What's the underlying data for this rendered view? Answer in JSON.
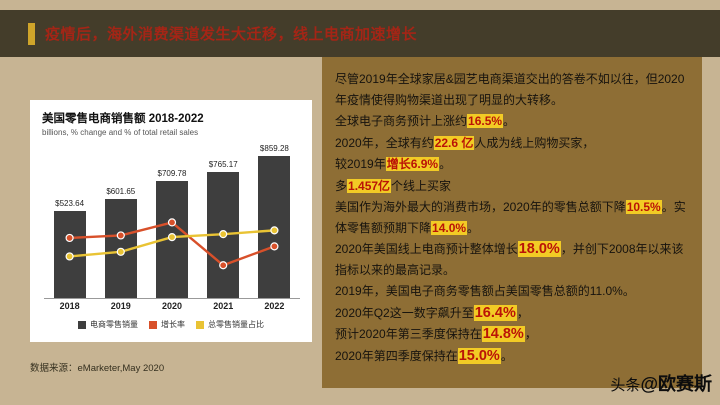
{
  "header": {
    "title": "疫情后，海外消费渠道发生大迁移，线上电商加速增长"
  },
  "colors": {
    "background_tan": "#c7b493",
    "header_bar": "#443d2a",
    "accent_gold": "#d0a52a",
    "title_red": "#a42516",
    "panel_brown": "#8e6e35",
    "highlight_yellow": "#f2cb25",
    "highlight_red": "#ba1307",
    "bar_gray": "#3e3e3e",
    "line_red": "#d8502a",
    "line_yellow": "#e9c334"
  },
  "chart_data": {
    "type": "bar",
    "title": "美国零售电商销售额 2018-2022",
    "subtitle": "billions, % change and % of total retail sales",
    "categories": [
      "2018",
      "2019",
      "2020",
      "2021",
      "2022"
    ],
    "series": [
      {
        "name": "电商零售销量",
        "kind": "bar",
        "values": [
          523.64,
          601.65,
          709.78,
          765.17,
          859.28
        ],
        "labels": [
          "$523.64",
          "$601.65",
          "$709.78",
          "$765.17",
          "$859.28"
        ],
        "color": "#3e3e3e"
      },
      {
        "name": "增长率",
        "kind": "line",
        "values": [
          14.3,
          14.9,
          18.0,
          7.8,
          12.3
        ],
        "color": "#d8502a"
      },
      {
        "name": "总零售销量占比",
        "kind": "line",
        "values": [
          9.9,
          11.0,
          14.5,
          15.2,
          16.1
        ],
        "color": "#e9c334"
      }
    ],
    "ylim": [
      0,
      920
    ],
    "grid": false,
    "legend_position": "bottom",
    "source": "数据来源：eMarketer,May 2020"
  },
  "right_panel": {
    "paragraphs": [
      {
        "segments": [
          {
            "t": "尽管2019年全球家居&园艺电商渠道交出的答卷不如以往，但2020年疫情使得购物渠道出现了明显的大转移。"
          }
        ]
      },
      {
        "segments": [
          {
            "t": "全球电子商务预计上涨约"
          },
          {
            "t": "16.5%",
            "h": true
          },
          {
            "t": "。"
          }
        ]
      },
      {
        "segments": [
          {
            "t": "2020年，全球有约"
          },
          {
            "t": "22.6 亿",
            "h": true
          },
          {
            "t": "人成为线上购物买家，"
          }
        ]
      },
      {
        "segments": [
          {
            "t": "较2019年"
          },
          {
            "t": "增长6.9%",
            "h": true
          },
          {
            "t": "。"
          }
        ]
      },
      {
        "segments": [
          {
            "t": "多"
          },
          {
            "t": "1.457亿",
            "h": true
          },
          {
            "t": "个线上买家"
          }
        ]
      },
      {
        "segments": [
          {
            "t": "美国作为海外最大的消费市场，2020年的零售总额下降"
          },
          {
            "t": "10.5%",
            "h": true
          },
          {
            "t": "。实体零售额预期下降"
          },
          {
            "t": "14.0%",
            "h": true
          },
          {
            "t": "。"
          }
        ]
      },
      {
        "segments": [
          {
            "t": "2020年美国线上电商预计整体增长"
          },
          {
            "t": "18.0%",
            "h": true,
            "big": true
          },
          {
            "t": "，并创下2008年以来该指标以来的最高记录。"
          }
        ]
      },
      {
        "segments": [
          {
            "t": "2019年，美国电子商务零售额占美国零售总额的11.0%。"
          }
        ]
      },
      {
        "segments": [
          {
            "t": "2020年Q2这一数字飙升至"
          },
          {
            "t": "16.4%",
            "h": true,
            "big": true
          },
          {
            "t": "，"
          }
        ]
      },
      {
        "segments": [
          {
            "t": "预计2020年第三季度保持在"
          },
          {
            "t": "14.8%",
            "h": true,
            "big": true
          },
          {
            "t": "，"
          }
        ]
      },
      {
        "segments": [
          {
            "t": "2020年第四季度保持在"
          },
          {
            "t": "15.0%",
            "h": true,
            "big": true
          },
          {
            "t": "。"
          }
        ]
      }
    ]
  },
  "watermark": {
    "prefix": "头条",
    "name": "@欧赛斯"
  }
}
